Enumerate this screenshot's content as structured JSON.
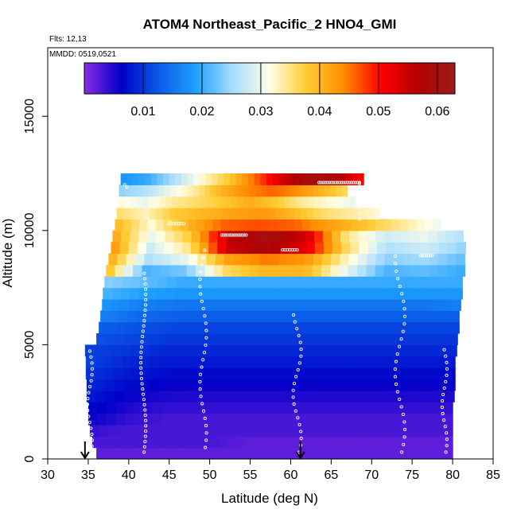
{
  "chart_data": {
    "type": "heatmap",
    "title": "ATOM4 Northeast_Pacific_2 HNO4_GMI",
    "flights_label": "Flts: 12,13",
    "dates_label": "MMDD: 0519,0521",
    "xlabel": "Latitude (deg N)",
    "ylabel": "Altitude (m)",
    "xlim": [
      30,
      85
    ],
    "ylim": [
      0,
      18000
    ],
    "x_ticks": [
      "30",
      "35",
      "40",
      "45",
      "50",
      "55",
      "60",
      "65",
      "70",
      "75",
      "80",
      "85"
    ],
    "y_ticks": [
      "0",
      "5000",
      "10000",
      "15000"
    ],
    "colorbar": {
      "range": [
        0,
        0.063
      ],
      "ticks": [
        "0.01",
        "0.02",
        "0.03",
        "0.04",
        "0.05",
        "0.06"
      ],
      "colors": [
        "#8a2be2",
        "#0000c8",
        "#0a5ae6",
        "#1ea0ff",
        "#a6dcff",
        "#ffffe6",
        "#ffcc33",
        "#ff8c00",
        "#ff0000",
        "#b20000",
        "#9c1c1c"
      ]
    },
    "altitude_bands_m": [
      250,
      750,
      1250,
      1750,
      2250,
      2750,
      3250,
      3750,
      4250,
      4750,
      5250,
      5750,
      6250,
      6750,
      7250,
      7750,
      8250,
      8750,
      9250,
      9750,
      10250,
      10750,
      11250,
      11750,
      12250
    ],
    "band_lat_ranges": [
      [
        36,
        80
      ],
      [
        35.5,
        80
      ],
      [
        35.2,
        80
      ],
      [
        35,
        80
      ],
      [
        35,
        80
      ],
      [
        34.8,
        80.2
      ],
      [
        34.8,
        80.3
      ],
      [
        34.7,
        80.3
      ],
      [
        34.7,
        80.3
      ],
      [
        34.6,
        80.5
      ],
      [
        36,
        80.6
      ],
      [
        36.3,
        80.8
      ],
      [
        36.5,
        80.8
      ],
      [
        36.7,
        81
      ],
      [
        36.8,
        81.2
      ],
      [
        37,
        81.2
      ],
      [
        37.2,
        81.5
      ],
      [
        37.5,
        81.5
      ],
      [
        37.8,
        81.6
      ],
      [
        38,
        81.3
      ],
      [
        38.3,
        78.5
      ],
      [
        38.5,
        71
      ],
      [
        38.7,
        68
      ],
      [
        38.8,
        67
      ],
      [
        39,
        69
      ]
    ],
    "values_by_band": [
      [
        0.002,
        0.002,
        0.002,
        0.002,
        0.002,
        0.002,
        0.002,
        0.002,
        0.002,
        0.002
      ],
      [
        0.003,
        0.003,
        0.003,
        0.003,
        0.002,
        0.002,
        0.002,
        0.002,
        0.002,
        0.002
      ],
      [
        0.004,
        0.003,
        0.003,
        0.003,
        0.003,
        0.003,
        0.003,
        0.003,
        0.003,
        0.003
      ],
      [
        0.006,
        0.004,
        0.003,
        0.003,
        0.003,
        0.003,
        0.003,
        0.003,
        0.003,
        0.003
      ],
      [
        0.007,
        0.005,
        0.004,
        0.004,
        0.004,
        0.004,
        0.004,
        0.004,
        0.004,
        0.004
      ],
      [
        0.008,
        0.006,
        0.005,
        0.005,
        0.005,
        0.005,
        0.005,
        0.005,
        0.005,
        0.005
      ],
      [
        0.009,
        0.007,
        0.006,
        0.006,
        0.006,
        0.006,
        0.006,
        0.006,
        0.006,
        0.006
      ],
      [
        0.01,
        0.008,
        0.007,
        0.007,
        0.007,
        0.007,
        0.007,
        0.007,
        0.007,
        0.007
      ],
      [
        0.011,
        0.009,
        0.008,
        0.008,
        0.008,
        0.008,
        0.008,
        0.008,
        0.008,
        0.008
      ],
      [
        0.011,
        0.01,
        0.009,
        0.009,
        0.009,
        0.009,
        0.009,
        0.009,
        0.009,
        0.009
      ],
      [
        0.012,
        0.011,
        0.01,
        0.01,
        0.01,
        0.01,
        0.01,
        0.01,
        0.01,
        0.01
      ],
      [
        0.013,
        0.012,
        0.011,
        0.011,
        0.011,
        0.011,
        0.011,
        0.011,
        0.011,
        0.011
      ],
      [
        0.016,
        0.014,
        0.013,
        0.013,
        0.013,
        0.013,
        0.013,
        0.013,
        0.013,
        0.013
      ],
      [
        0.018,
        0.016,
        0.015,
        0.015,
        0.015,
        0.015,
        0.015,
        0.015,
        0.015,
        0.016
      ],
      [
        0.021,
        0.019,
        0.018,
        0.018,
        0.018,
        0.018,
        0.018,
        0.018,
        0.018,
        0.018
      ],
      [
        0.024,
        0.022,
        0.02,
        0.02,
        0.02,
        0.02,
        0.02,
        0.02,
        0.02,
        0.02
      ],
      [
        0.04,
        0.021,
        0.023,
        0.036,
        0.04,
        0.04,
        0.03,
        0.021,
        0.022,
        0.02
      ],
      [
        0.042,
        0.026,
        0.03,
        0.042,
        0.045,
        0.043,
        0.033,
        0.024,
        0.025,
        0.022
      ],
      [
        0.044,
        0.028,
        0.035,
        0.055,
        0.058,
        0.052,
        0.036,
        0.026,
        0.028,
        0.024
      ],
      [
        0.042,
        0.03,
        0.038,
        0.056,
        0.06,
        0.054,
        0.035,
        0.028,
        0.03,
        0.026
      ],
      [
        0.04,
        0.032,
        0.04,
        0.046,
        0.047,
        0.046,
        0.042,
        0.038,
        0.034,
        0.03
      ],
      [
        0.036,
        0.033,
        0.038,
        0.04,
        0.042,
        0.043,
        0.04,
        0.036,
        0.034,
        0.032
      ],
      [
        0.032,
        0.03,
        0.034,
        0.036,
        0.038,
        0.041,
        0.038,
        0.034,
        0.032,
        0.03
      ],
      [
        0.024,
        0.026,
        0.03,
        0.034,
        0.04,
        0.044,
        0.046,
        0.044,
        0.04,
        0.036
      ],
      [
        0.018,
        0.02,
        0.026,
        0.032,
        0.038,
        0.046,
        0.054,
        0.06,
        0.058,
        0.05
      ]
    ],
    "flight_arrows_lat": [
      34.6,
      61.2
    ]
  }
}
